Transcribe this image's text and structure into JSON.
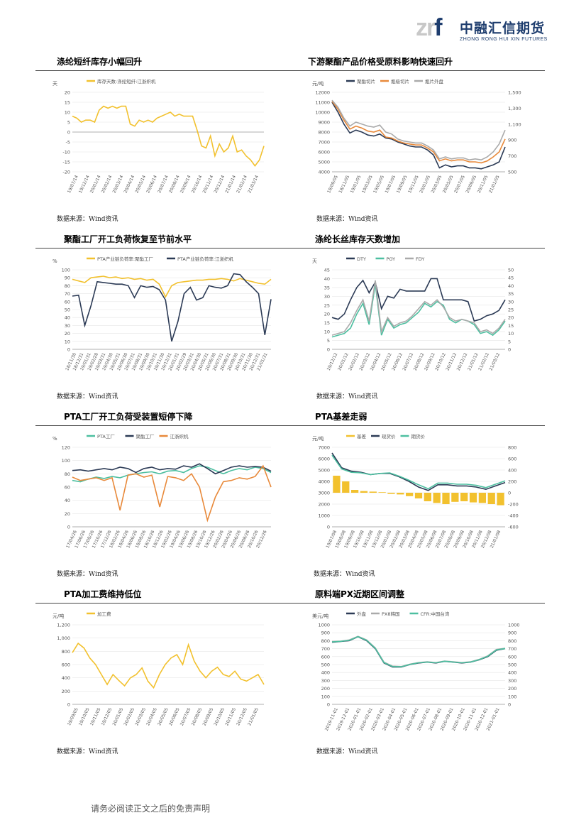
{
  "header": {
    "logo_mark": "zrf",
    "company_cn": "中融汇信期货",
    "company_en": "ZHONG RONG HUI XIN FUTURES"
  },
  "footer": {
    "text": "请务必阅读正文之后的免责声明"
  },
  "source": "数据来源：Wind资讯",
  "sections": [
    {
      "title": "涤纶短纤库存小幅回升"
    },
    {
      "title": "下游聚酯产品价格受原料影响快速回升"
    },
    {
      "title": "聚酯工厂开工负荷恢复至节前水平"
    },
    {
      "title": "涤纶长丝库存天数增加"
    },
    {
      "title": "PTA工厂开工负荷受装置短停下降"
    },
    {
      "title": "PTA基差走弱"
    },
    {
      "title": "PTA加工费维持低位"
    },
    {
      "title": "原料端PX近期区间调整"
    }
  ],
  "chart_data": [
    {
      "type": "line",
      "unit": "天",
      "legend": [
        "库存天数:涤纶短纤:江浙织机"
      ],
      "colors": [
        "#f2c12e"
      ],
      "xlabels": [
        "19/07/14",
        "19/12/14",
        "20/01/14",
        "20/02/14",
        "20/03/14",
        "20/04/14",
        "20/05/14",
        "20/06/14",
        "20/07/14",
        "20/08/14",
        "20/09/14",
        "20/10/14",
        "20/11/14",
        "20/12/14",
        "21/01/14",
        "21/02/14",
        "21/03/14"
      ],
      "yticks": [
        "20",
        "15",
        "10",
        "5",
        "0",
        "-5",
        "-10",
        "-15",
        "-20"
      ],
      "ylim": [
        -20,
        20
      ],
      "series": [
        {
          "values": [
            8,
            7,
            5,
            6,
            6,
            5,
            11,
            13,
            12,
            13,
            12,
            13,
            13,
            4,
            3,
            6,
            5,
            6,
            5,
            7,
            8,
            9,
            10,
            8,
            9,
            8,
            8,
            8,
            1,
            -7,
            -8,
            -2,
            -12,
            -6,
            -10,
            -8,
            -2,
            -10,
            -9,
            -12,
            -14,
            -17,
            -14,
            -7
          ]
        }
      ]
    },
    {
      "type": "line",
      "unit": "元/吨",
      "legend": [
        "聚酯切片",
        "瓶级切片",
        "瓶片外盘"
      ],
      "colors": [
        "#2b3a55",
        "#e8893a",
        "#aaaaaa"
      ],
      "xlabels": [
        "18/09/05",
        "18/11/05",
        "19/01/05",
        "19/03/05",
        "19/05/05",
        "19/07/05",
        "19/09/05",
        "19/11/05",
        "20/01/05",
        "20/03/05",
        "20/05/05",
        "20/07/05",
        "20/09/05",
        "20/11/05",
        "21/01/05"
      ],
      "yticks": [
        "12000",
        "11000",
        "10000",
        "9000",
        "8000",
        "7000",
        "6000",
        "5000",
        "4000"
      ],
      "ylim": [
        4000,
        12000
      ],
      "y2ticks": [
        "1,500",
        "1,300",
        "1,100",
        "900",
        "700",
        "500"
      ],
      "y2lim": [
        500,
        1500
      ],
      "series": [
        {
          "name": "聚酯切片",
          "values": [
            11000,
            10000,
            8800,
            7900,
            8200,
            8000,
            7700,
            7600,
            7800,
            7400,
            7300,
            7000,
            6800,
            6600,
            6500,
            6500,
            6200,
            5700,
            4400,
            4700,
            4500,
            4600,
            4600,
            4400,
            4400,
            4300,
            4500,
            4700,
            5000,
            6500
          ]
        },
        {
          "name": "瓶级切片",
          "values": [
            11100,
            10300,
            9200,
            8300,
            8600,
            8400,
            8100,
            8000,
            8200,
            7500,
            7400,
            7100,
            6900,
            6800,
            6700,
            6700,
            6400,
            6000,
            5100,
            5300,
            5100,
            5200,
            5200,
            5000,
            5000,
            4900,
            5100,
            5500,
            6000,
            7300
          ]
        },
        {
          "name": "瓶片外盘",
          "values": [
            11200,
            10500,
            9400,
            8600,
            9000,
            8800,
            8600,
            8500,
            8700,
            8000,
            7800,
            7300,
            7100,
            7000,
            6900,
            6900,
            6600,
            6200,
            5300,
            5500,
            5300,
            5400,
            5400,
            5200,
            5300,
            5200,
            5500,
            6000,
            6800,
            8200
          ]
        }
      ]
    },
    {
      "type": "line",
      "unit": "%",
      "legend": [
        "PTA产业链负荷率:聚酯工厂",
        "PTA产业链负荷率:江浙织机"
      ],
      "colors": [
        "#f2c12e",
        "#2b3a55"
      ],
      "xlabels": [
        "18/11/30",
        "18/12/31",
        "19/01/31",
        "19/02/28",
        "19/03/31",
        "19/04/30",
        "19/05/31",
        "19/06/30",
        "19/07/31",
        "19/08/31",
        "19/09/30",
        "19/10/31",
        "19/11/30",
        "19/12/31",
        "20/01/31",
        "20/02/29",
        "20/03/31",
        "20/04/30",
        "20/05/31",
        "20/06/30",
        "20/07/31",
        "20/08/31",
        "20/09/30",
        "20/10/31",
        "20/11/30",
        "20/12/31",
        "21/01/31"
      ],
      "yticks": [
        "100",
        "90",
        "80",
        "70",
        "60",
        "50",
        "40",
        "30",
        "20",
        "10",
        "0"
      ],
      "ylim": [
        0,
        100
      ],
      "series": [
        {
          "name": "聚酯工厂",
          "values": [
            88,
            86,
            84,
            90,
            91,
            92,
            90,
            91,
            89,
            90,
            88,
            89,
            87,
            88,
            82,
            66,
            80,
            84,
            85,
            86,
            87,
            87,
            88,
            88,
            89,
            88,
            86,
            89,
            87,
            85,
            83,
            82,
            88
          ]
        },
        {
          "name": "江浙织机",
          "values": [
            67,
            68,
            30,
            55,
            85,
            84,
            83,
            82,
            82,
            80,
            65,
            80,
            78,
            79,
            75,
            62,
            10,
            35,
            70,
            78,
            62,
            65,
            80,
            78,
            77,
            80,
            95,
            94,
            85,
            78,
            70,
            18,
            63
          ]
        }
      ]
    },
    {
      "type": "line",
      "unit": "天",
      "legend": [
        "DTY",
        "POY",
        "FDY"
      ],
      "colors": [
        "#2b3a55",
        "#4dbfa0",
        "#aaaaaa"
      ],
      "xlabels": [
        "19/12/12",
        "20/01/12",
        "20/02/12",
        "20/03/12",
        "20/04/12",
        "20/05/12",
        "20/06/12",
        "20/07/12",
        "20/08/12",
        "20/09/12",
        "20/10/12",
        "20/11/12",
        "20/12/12",
        "21/01/12",
        "21/02/12",
        "21/03/12"
      ],
      "yticks": [
        "45",
        "40",
        "35",
        "30",
        "25",
        "20",
        "15",
        "10",
        "5",
        "0"
      ],
      "ylim": [
        0,
        45
      ],
      "y2ticks": [
        "50",
        "45",
        "40",
        "35",
        "30",
        "25",
        "20",
        "15",
        "10",
        "5",
        "0"
      ],
      "y2lim": [
        0,
        50
      ],
      "series": [
        {
          "name": "DTY",
          "values": [
            18,
            17,
            20,
            28,
            35,
            39,
            32,
            38,
            23,
            30,
            29,
            34,
            33,
            33,
            33,
            33,
            40,
            40,
            28,
            28,
            28,
            28,
            27,
            16,
            17,
            19,
            20,
            22,
            28
          ]
        },
        {
          "name": "POY",
          "values": [
            7,
            8,
            9,
            12,
            20,
            26,
            14,
            37,
            8,
            17,
            12,
            14,
            15,
            18,
            21,
            26,
            24,
            27,
            25,
            17,
            15,
            17,
            16,
            14,
            9,
            10,
            8,
            11,
            16
          ]
        },
        {
          "name": "FDY",
          "values": [
            8,
            9,
            10,
            15,
            22,
            28,
            16,
            39,
            10,
            18,
            13,
            15,
            16,
            19,
            23,
            27,
            25,
            28,
            24,
            18,
            16,
            17,
            16,
            15,
            10,
            11,
            9,
            12,
            17
          ]
        }
      ]
    },
    {
      "type": "line",
      "unit": "%",
      "legend": [
        "PTA工厂",
        "聚酯工厂",
        "江浙织机"
      ],
      "colors": [
        "#4dbfa0",
        "#2b3a55",
        "#e8893a"
      ],
      "xlabels": [
        "17/04/26",
        "17/06/26",
        "17/08/26",
        "17/10/26",
        "17/12/26",
        "18/02/26",
        "18/04/26",
        "18/06/26",
        "18/08/26",
        "18/10/26",
        "18/12/26",
        "19/02/26",
        "19/04/26",
        "19/06/26",
        "19/08/26",
        "19/10/26",
        "19/12/26",
        "20/02/26",
        "20/04/26",
        "20/06/26",
        "20/08/26",
        "20/10/26",
        "20/12/26"
      ],
      "yticks": [
        "120",
        "100",
        "80",
        "60",
        "40",
        "20",
        "0"
      ],
      "ylim": [
        0,
        120
      ],
      "series": [
        {
          "name": "PTA工厂",
          "values": [
            70,
            68,
            72,
            75,
            73,
            76,
            74,
            78,
            80,
            82,
            83,
            80,
            84,
            85,
            82,
            88,
            92,
            90,
            85,
            80,
            85,
            88,
            86,
            90,
            88,
            82
          ]
        },
        {
          "name": "聚酯工厂",
          "values": [
            85,
            86,
            84,
            86,
            88,
            86,
            90,
            88,
            82,
            88,
            90,
            86,
            88,
            87,
            92,
            90,
            95,
            88,
            80,
            85,
            90,
            92,
            90,
            91,
            90,
            84
          ]
        },
        {
          "name": "江浙织机",
          "values": [
            75,
            70,
            72,
            74,
            70,
            74,
            25,
            78,
            80,
            75,
            78,
            30,
            76,
            74,
            70,
            80,
            60,
            10,
            45,
            68,
            70,
            74,
            72,
            76,
            92,
            60
          ]
        }
      ]
    },
    {
      "type": "line",
      "unit": "元/吨",
      "legend": [
        "基差",
        "现货价",
        "期货价"
      ],
      "colors": [
        "#f2c12e",
        "#2b3a55",
        "#4dbfa0"
      ],
      "xlabels": [
        "19/07/08",
        "19/08/08",
        "19/09/08",
        "19/10/08",
        "19/11/08",
        "19/12/08",
        "20/01/08",
        "20/02/08",
        "20/03/08",
        "20/04/08",
        "20/05/08",
        "20/06/08",
        "20/07/08",
        "20/08/08",
        "20/09/08",
        "20/10/08",
        "20/11/08",
        "20/12/08",
        "21/01/08"
      ],
      "yticks": [
        "7000",
        "6000",
        "5000",
        "4000",
        "3000",
        "2000",
        "1000",
        "0"
      ],
      "ylim": [
        0,
        7000
      ],
      "y2ticks": [
        "800",
        "600",
        "400",
        "200",
        "0",
        "-200",
        "-400",
        "-600"
      ],
      "y2lim": [
        -600,
        800
      ],
      "series": [
        {
          "name": "基差",
          "values": [
            300,
            200,
            50,
            30,
            20,
            10,
            -20,
            -30,
            -60,
            -100,
            -150,
            -180,
            -200,
            -160,
            -150,
            -170,
            -180,
            -200,
            -220
          ]
        },
        {
          "name": "现货价",
          "values": [
            6500,
            5200,
            4900,
            4800,
            4600,
            4700,
            4700,
            4400,
            4000,
            3500,
            3200,
            3700,
            3700,
            3600,
            3600,
            3500,
            3300,
            3600,
            3900
          ]
        },
        {
          "name": "期货价",
          "values": [
            6300,
            5100,
            4800,
            4750,
            4600,
            4700,
            4750,
            4450,
            4100,
            3700,
            3350,
            3850,
            3850,
            3750,
            3750,
            3650,
            3450,
            3750,
            4050
          ]
        }
      ]
    },
    {
      "type": "line",
      "unit": "元/吨",
      "legend": [
        "加工费"
      ],
      "colors": [
        "#f2c12e"
      ],
      "xlabels": [
        "19/09/05",
        "19/10/05",
        "19/11/05",
        "19/12/05",
        "20/01/05",
        "20/02/05",
        "20/03/05",
        "20/04/05",
        "20/05/05",
        "20/06/05",
        "20/07/05",
        "20/08/05",
        "20/09/05",
        "20/10/05",
        "20/11/05",
        "20/12/05",
        "21/01/05"
      ],
      "yticks": [
        "1,200",
        "1,000",
        "800",
        "600",
        "400",
        "200",
        "0"
      ],
      "ylim": [
        0,
        1200
      ],
      "series": [
        {
          "values": [
            780,
            920,
            850,
            700,
            600,
            450,
            300,
            450,
            360,
            280,
            400,
            450,
            550,
            350,
            250,
            450,
            600,
            700,
            750,
            600,
            900,
            650,
            500,
            400,
            500,
            560,
            450,
            420,
            500,
            380,
            350,
            400,
            450,
            300
          ]
        }
      ]
    },
    {
      "type": "line",
      "unit": "美元/吨",
      "legend": [
        "外盘",
        "PX8韩国",
        "CFR:中国台湾"
      ],
      "colors": [
        "#2b3a55",
        "#aaaaaa",
        "#4dbfa0"
      ],
      "xlabels": [
        "2019-11-01",
        "2019-12-01",
        "2020-01-01",
        "2020-02-01",
        "2020-03-01",
        "2020-04-01",
        "2020-05-01",
        "2020-06-01",
        "2020-07-01",
        "2020-08-01",
        "2020-09-01",
        "2020-10-01",
        "2020-11-01",
        "2020-12-01",
        "2021-01-01"
      ],
      "yticks": [
        "1000",
        "900",
        "800",
        "700",
        "600",
        "500",
        "400",
        "300",
        "200",
        "100",
        "0"
      ],
      "ylim": [
        0,
        1000
      ],
      "y2ticks": [
        "1000",
        "900",
        "800",
        "700",
        "600",
        "500",
        "400",
        "300",
        "200",
        "100",
        "0"
      ],
      "y2lim": [
        0,
        1000
      ],
      "series": [
        {
          "name": "外盘",
          "values": [
            780,
            790,
            800,
            850,
            800,
            700,
            520,
            470,
            470,
            500,
            520,
            530,
            520,
            540,
            530,
            520,
            530,
            560,
            600,
            680,
            700
          ]
        },
        {
          "name": "PX8韩国",
          "values": [
            790,
            795,
            810,
            855,
            810,
            710,
            530,
            480,
            475,
            505,
            525,
            535,
            525,
            545,
            535,
            525,
            535,
            565,
            610,
            690,
            705
          ]
        },
        {
          "name": "CFR:中国台湾",
          "values": [
            785,
            792,
            805,
            852,
            805,
            705,
            525,
            475,
            472,
            502,
            522,
            532,
            522,
            542,
            532,
            522,
            532,
            562,
            605,
            685,
            702
          ]
        }
      ]
    }
  ]
}
